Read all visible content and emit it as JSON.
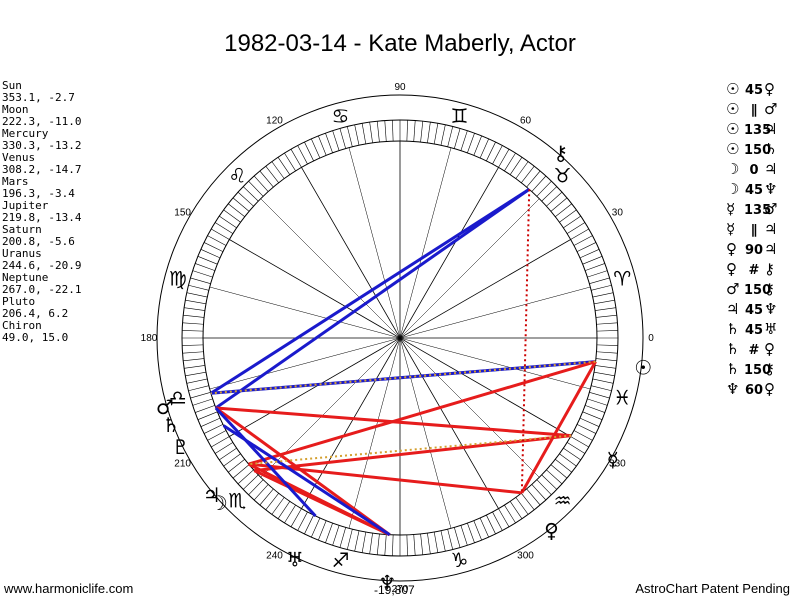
{
  "title": "1982-03-14 - Kate Maberly, Actor",
  "planets": [
    {
      "name": "Sun",
      "coords": "353.1, -2.7",
      "lon": 353.1,
      "glyph": "☉"
    },
    {
      "name": "Moon",
      "coords": "222.3, -11.0",
      "lon": 222.3,
      "glyph": "☽"
    },
    {
      "name": "Mercury",
      "coords": "330.3, -13.2",
      "lon": 330.3,
      "glyph": "☿"
    },
    {
      "name": "Venus",
      "coords": "308.2, -14.7",
      "lon": 308.2,
      "glyph": "♀"
    },
    {
      "name": "Mars",
      "coords": "196.3, -3.4",
      "lon": 196.3,
      "glyph": "♂"
    },
    {
      "name": "Jupiter",
      "coords": "219.8, -13.4",
      "lon": 219.8,
      "glyph": "♃"
    },
    {
      "name": "Saturn",
      "coords": "200.8, -5.6",
      "lon": 200.8,
      "glyph": "♄"
    },
    {
      "name": "Uranus",
      "coords": "244.6, -20.9",
      "lon": 244.6,
      "glyph": "♅"
    },
    {
      "name": "Neptune",
      "coords": "267.0, -22.1",
      "lon": 267.0,
      "glyph": "♆"
    },
    {
      "name": "Pluto",
      "coords": "206.4, 6.2",
      "lon": 206.4,
      "glyph": "♇"
    },
    {
      "name": "Chiron",
      "coords": "49.0, 15.0",
      "lon": 49.0,
      "glyph": "⚷"
    }
  ],
  "aspects": [
    {
      "p1": "☉",
      "sym": "45",
      "p2": "♀"
    },
    {
      "p1": "☉",
      "sym": "∥",
      "p2": "♂"
    },
    {
      "p1": "☉",
      "sym": "135",
      "p2": "♃"
    },
    {
      "p1": "☉",
      "sym": "150",
      "p2": "♄"
    },
    {
      "p1": "☽",
      "sym": "0",
      "p2": "♃"
    },
    {
      "p1": "☽",
      "sym": "45",
      "p2": "♆"
    },
    {
      "p1": "☿",
      "sym": "135",
      "p2": "♂"
    },
    {
      "p1": "☿",
      "sym": "∥",
      "p2": "♃"
    },
    {
      "p1": "♀",
      "sym": "90",
      "p2": "♃"
    },
    {
      "p1": "♀",
      "sym": "#",
      "p2": "⚷"
    },
    {
      "p1": "♂",
      "sym": "150",
      "p2": "⚷"
    },
    {
      "p1": "♃",
      "sym": "45",
      "p2": "♆"
    },
    {
      "p1": "♄",
      "sym": "45",
      "p2": "♅"
    },
    {
      "p1": "♄",
      "sym": "#",
      "p2": "♀"
    },
    {
      "p1": "♄",
      "sym": "150",
      "p2": "⚷"
    },
    {
      "p1": "♆",
      "sym": "60",
      "p2": "♀"
    }
  ],
  "zodiac": [
    {
      "name": "aries",
      "glyph": "♈"
    },
    {
      "name": "taurus",
      "glyph": "♉"
    },
    {
      "name": "gemini",
      "glyph": "♊"
    },
    {
      "name": "cancer",
      "glyph": "♋"
    },
    {
      "name": "leo",
      "glyph": "♌"
    },
    {
      "name": "virgo",
      "glyph": "♍"
    },
    {
      "name": "libra",
      "glyph": "♎"
    },
    {
      "name": "scorpio",
      "glyph": "♏"
    },
    {
      "name": "sagittarius",
      "glyph": "♐"
    },
    {
      "name": "capricorn",
      "glyph": "♑"
    },
    {
      "name": "aquarius",
      "glyph": "♒"
    },
    {
      "name": "pisces",
      "glyph": "♓"
    }
  ],
  "degree_labels": [
    "0",
    "30",
    "60",
    "90",
    "120",
    "150",
    "180",
    "210",
    "240",
    "270",
    "300",
    "330"
  ],
  "footer_left": "www.harmoniclife.com",
  "footer_right": "AstroChart Patent Pending",
  "footer_center": "-19,807",
  "colors": {
    "line_blue": "#1a1acc",
    "line_red": "#e61c1c",
    "line_orange": "#d4a030",
    "line_red_dotted": "#cc0000"
  },
  "lines": [
    {
      "a": "Chiron",
      "b": "Saturn",
      "color": "blue",
      "style": "solid"
    },
    {
      "a": "Chiron",
      "b": "Mars",
      "color": "blue",
      "style": "solid"
    },
    {
      "a": "Sun",
      "b": "Mars",
      "color": "blue",
      "style": "solid"
    },
    {
      "a": "Sun",
      "b": "Venus",
      "color": "red",
      "style": "solid"
    },
    {
      "a": "Sun",
      "b": "Jupiter",
      "color": "red",
      "style": "solid"
    },
    {
      "a": "Saturn",
      "b": "Mercury",
      "color": "red",
      "style": "solid"
    },
    {
      "a": "Saturn",
      "b": "Neptune",
      "color": "red",
      "style": "solid"
    },
    {
      "a": "Mercury",
      "b": "Moon",
      "color": "red",
      "style": "solid"
    },
    {
      "a": "Venus",
      "b": "Jupiter",
      "color": "red",
      "style": "solid"
    },
    {
      "a": "Jupiter",
      "b": "Neptune",
      "color": "red",
      "style": "solid"
    },
    {
      "a": "Moon",
      "b": "Neptune",
      "color": "red",
      "style": "solid"
    },
    {
      "a": "Uranus",
      "b": "Saturn",
      "color": "blue",
      "style": "solid"
    },
    {
      "a": "Pluto",
      "b": "Neptune",
      "color": "blue",
      "style": "solid"
    },
    {
      "a": "Sun",
      "b": "Mars",
      "color": "orange",
      "style": "dotted"
    },
    {
      "a": "Mercury",
      "b": "Jupiter",
      "color": "orange",
      "style": "dotted"
    },
    {
      "a": "Chiron",
      "b": "Venus",
      "color": "red",
      "style": "dotted"
    }
  ]
}
